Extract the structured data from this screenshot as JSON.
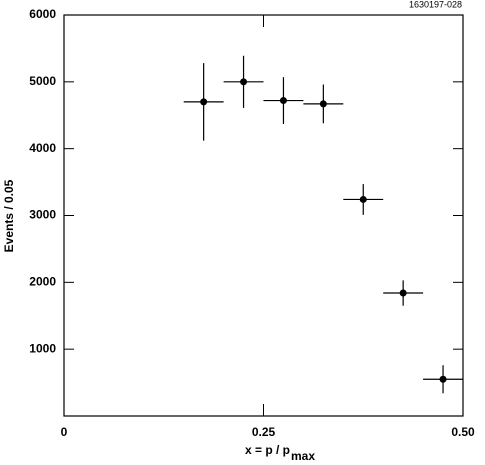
{
  "chart_data": {
    "type": "scatter",
    "note_id": "1630197-028",
    "ylabel": "Events / 0.05",
    "xlabel": "x = p / p",
    "xlabel_sub": "max",
    "xlim": [
      0,
      0.5
    ],
    "ylim": [
      0,
      6000
    ],
    "xticks": [
      0,
      0.25,
      {
        "value": 0.5,
        "label": "0.50"
      }
    ],
    "yticks": [
      1000,
      2000,
      3000,
      4000,
      5000,
      6000
    ],
    "color": "#000000",
    "x": [
      0.175,
      0.225,
      0.275,
      0.325,
      0.375,
      0.425,
      0.475
    ],
    "xerr": [
      0.025,
      0.025,
      0.025,
      0.025,
      0.025,
      0.025,
      0.025
    ],
    "values": [
      4700,
      5000,
      4720,
      4670,
      3240,
      1840,
      550
    ],
    "yerr": [
      580,
      390,
      350,
      290,
      230,
      190,
      210
    ]
  }
}
